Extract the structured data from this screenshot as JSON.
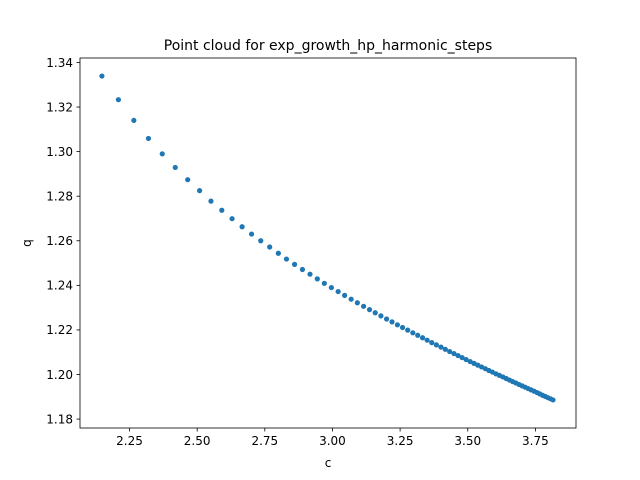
{
  "chart_data": {
    "type": "scatter",
    "title": "Point cloud for exp_growth_hp_harmonic_steps",
    "xlabel": "c",
    "ylabel": "q",
    "xlim": [
      2.067,
      3.9
    ],
    "ylim": [
      1.176,
      1.342
    ],
    "xticks": [
      2.25,
      2.5,
      2.75,
      3.0,
      3.25,
      3.5,
      3.75
    ],
    "xtick_labels": [
      "2.25",
      "2.50",
      "2.75",
      "3.00",
      "3.25",
      "3.50",
      "3.75"
    ],
    "yticks": [
      1.18,
      1.2,
      1.22,
      1.24,
      1.26,
      1.28,
      1.3,
      1.32,
      1.34
    ],
    "ytick_labels": [
      "1.18",
      "1.20",
      "1.22",
      "1.24",
      "1.26",
      "1.28",
      "1.30",
      "1.32",
      "1.34"
    ],
    "grid": false,
    "marker_color": "#1f77b4",
    "series": [
      {
        "x": [
          2.148,
          2.209,
          2.266,
          2.32,
          2.371,
          2.419,
          2.465,
          2.509,
          2.551,
          2.591,
          2.629,
          2.666,
          2.701,
          2.735,
          2.768,
          2.8,
          2.83,
          2.86,
          2.889,
          2.917,
          2.944,
          2.97,
          2.996,
          3.021,
          3.045,
          3.069,
          3.092,
          3.115,
          3.137,
          3.158,
          3.179,
          3.2,
          3.22,
          3.24,
          3.259,
          3.278,
          3.297,
          3.315,
          3.333,
          3.35,
          3.367,
          3.384,
          3.401,
          3.417,
          3.433,
          3.449,
          3.464,
          3.479,
          3.494,
          3.509,
          3.523,
          3.537,
          3.551,
          3.565,
          3.578,
          3.591,
          3.604,
          3.617,
          3.63,
          3.642,
          3.654,
          3.666,
          3.678,
          3.69,
          3.701,
          3.712,
          3.723,
          3.734,
          3.745,
          3.756,
          3.766,
          3.776,
          3.786,
          3.796,
          3.806,
          3.815
        ],
        "y": [
          1.3339,
          1.3233,
          1.314,
          1.3059,
          1.299,
          1.2929,
          1.2874,
          1.2825,
          1.2778,
          1.2737,
          1.2699,
          1.2663,
          1.263,
          1.26,
          1.2572,
          1.2544,
          1.2518,
          1.2494,
          1.2471,
          1.245,
          1.2429,
          1.2409,
          1.239,
          1.2372,
          1.2355,
          1.2338,
          1.2322,
          1.2306,
          1.2291,
          1.2277,
          1.2263,
          1.2249,
          1.2236,
          1.2223,
          1.2211,
          1.2199,
          1.2187,
          1.2176,
          1.2165,
          1.2154,
          1.2143,
          1.2133,
          1.2123,
          1.2113,
          1.2103,
          1.2094,
          1.2085,
          1.2076,
          1.2067,
          1.2058,
          1.205,
          1.2042,
          1.2034,
          1.2026,
          1.2018,
          1.2011,
          1.2003,
          1.1996,
          1.1989,
          1.1982,
          1.1975,
          1.1968,
          1.1962,
          1.1955,
          1.1949,
          1.1943,
          1.1937,
          1.1931,
          1.1925,
          1.1919,
          1.1913,
          1.1907,
          1.1902,
          1.1896,
          1.1891,
          1.1886
        ]
      }
    ]
  }
}
